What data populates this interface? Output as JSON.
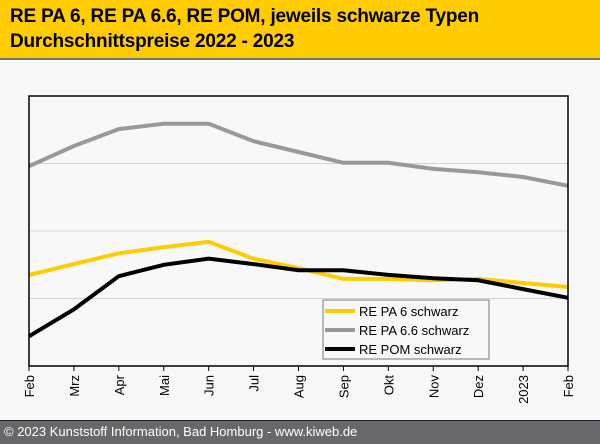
{
  "header": {
    "title_line1": "RE PA 6, RE PA 6.6, RE POM, jeweils schwarze Typen",
    "title_line2": "Durchschnittspreise 2022 - 2023"
  },
  "footer": {
    "copyright": "© 2023 Kunststoff Information, Bad Homburg - www.kiweb.de"
  },
  "chart_data": {
    "type": "line",
    "title": "RE PA 6, RE PA 6.6, RE POM, jeweils schwarze Typen – Durchschnittspreise 2022 - 2023",
    "xlabel": "",
    "ylabel": "",
    "y_units_note": "relative grid units (no y-axis labels shown)",
    "ylim": [
      0,
      4
    ],
    "y_gridlines": [
      1,
      2,
      3
    ],
    "grid": true,
    "legend_position": "bottom-right",
    "x": [
      "Feb",
      "Mrz",
      "Apr",
      "Mai",
      "Jun",
      "Jul",
      "Aug",
      "Sep",
      "Okt",
      "Nov",
      "Dez",
      "2023",
      "Feb"
    ],
    "series": [
      {
        "name": "RE PA 6 schwarz",
        "color": "#ffcc00",
        "values": [
          1.35,
          1.51,
          1.67,
          1.76,
          1.84,
          1.59,
          1.45,
          1.29,
          1.29,
          1.27,
          1.29,
          1.23,
          1.17
        ]
      },
      {
        "name": "RE PA 6.6 schwarz",
        "color": "#999999",
        "values": [
          2.96,
          3.26,
          3.51,
          3.59,
          3.59,
          3.33,
          3.17,
          3.01,
          3.01,
          2.92,
          2.87,
          2.8,
          2.67
        ]
      },
      {
        "name": "RE POM schwarz",
        "color": "#000000",
        "values": [
          0.44,
          0.84,
          1.33,
          1.5,
          1.59,
          1.51,
          1.42,
          1.42,
          1.35,
          1.3,
          1.27,
          1.14,
          1.01
        ]
      }
    ]
  }
}
